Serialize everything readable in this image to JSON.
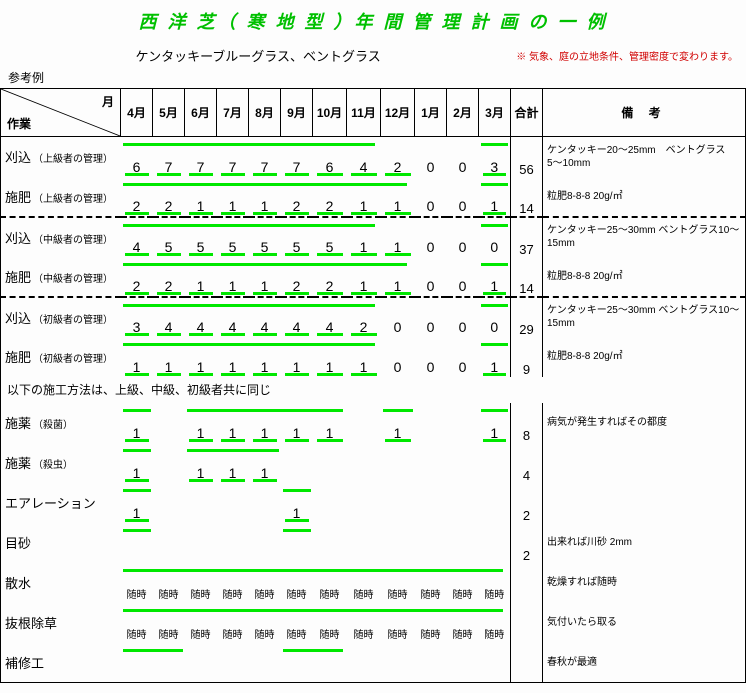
{
  "title": "西 洋 芝（ 寒 地 型 ）年 間 管 理 計 画 の 一 例",
  "subtitle": "ケンタッキーブルーグラス、ベントグラス",
  "note": "※ 気象、庭の立地条件、管理密度で変わります。",
  "ref": "参考例",
  "header": {
    "month": "月",
    "work": "作業",
    "total": "合計",
    "remark": "備 考"
  },
  "months": [
    "4月",
    "5月",
    "6月",
    "7月",
    "8月",
    "9月",
    "10月",
    "11月",
    "12月",
    "1月",
    "2月",
    "3月"
  ],
  "section_note": "以下の施工方法は、上級、中級、初級者共に同じ",
  "rows": [
    {
      "label": "刈込",
      "sub": "（上級者の管理）",
      "vals": [
        "6",
        "7",
        "7",
        "7",
        "7",
        "7",
        "6",
        "4",
        "2",
        "0",
        "0",
        "3"
      ],
      "total": "56",
      "remark": "ケンタッキー20〜25mm　ベントグラス 5〜10mm",
      "topbars": [
        [
          0,
          8
        ],
        [
          11,
          12
        ]
      ],
      "ubar": true
    },
    {
      "label": "施肥",
      "sub": "（上級者の管理）",
      "vals": [
        "2",
        "2",
        "1",
        "1",
        "1",
        "2",
        "2",
        "1",
        "1",
        "0",
        "0",
        "1"
      ],
      "total": "14",
      "remark": "粒肥8-8-8  20g/㎡",
      "topbars": [
        [
          0,
          9
        ],
        [
          11,
          12
        ]
      ],
      "ubar": true,
      "sep": true
    },
    {
      "label": "刈込",
      "sub": "（中級者の管理）",
      "vals": [
        "4",
        "5",
        "5",
        "5",
        "5",
        "5",
        "5",
        "1",
        "1",
        "0",
        "0",
        "0"
      ],
      "total": "37",
      "remark": "ケンタッキー25〜30mm ベントグラス10〜15mm",
      "topbars": [
        [
          0,
          8
        ],
        [
          11,
          12
        ]
      ],
      "ubar": true
    },
    {
      "label": "施肥",
      "sub": "（中級者の管理）",
      "vals": [
        "2",
        "2",
        "1",
        "1",
        "1",
        "2",
        "2",
        "1",
        "1",
        "0",
        "0",
        "1"
      ],
      "total": "14",
      "remark": "粒肥8-8-8  20g/㎡",
      "topbars": [
        [
          0,
          9
        ],
        [
          11,
          12
        ]
      ],
      "ubar": true,
      "sep": true
    },
    {
      "label": "刈込",
      "sub": "（初級者の管理）",
      "vals": [
        "3",
        "4",
        "4",
        "4",
        "4",
        "4",
        "4",
        "2",
        "0",
        "0",
        "0",
        "0"
      ],
      "total": "29",
      "remark": "ケンタッキー25〜30mm ベントグラス10〜15mm",
      "topbars": [
        [
          0,
          8
        ],
        [
          11,
          12
        ]
      ],
      "ubar": true
    },
    {
      "label": "施肥",
      "sub": "（初級者の管理）",
      "vals": [
        "1",
        "1",
        "1",
        "1",
        "1",
        "1",
        "1",
        "1",
        "0",
        "0",
        "0",
        "1"
      ],
      "total": "9",
      "remark": "粒肥8-8-8  20g/㎡",
      "topbars": [
        [
          0,
          8
        ],
        [
          11,
          12
        ]
      ],
      "ubar": true
    },
    {
      "section": true
    },
    {
      "label": "施薬",
      "sub": "（殺菌）",
      "vals": [
        "1",
        "",
        "1",
        "1",
        "1",
        "1",
        "1",
        "",
        "1",
        "",
        "",
        "1"
      ],
      "total": "8",
      "remark": "病気が発生すればその都度",
      "topbars": [
        [
          0,
          1
        ],
        [
          2,
          7
        ],
        [
          8,
          9
        ],
        [
          11,
          12
        ]
      ],
      "ubar": true
    },
    {
      "label": "施薬",
      "sub": "（殺虫）",
      "vals": [
        "1",
        "",
        "1",
        "1",
        "1",
        "",
        "",
        "",
        "",
        "",
        "",
        ""
      ],
      "total": "4",
      "remark": "",
      "topbars": [
        [
          0,
          1
        ],
        [
          2,
          5
        ]
      ],
      "ubar": true
    },
    {
      "label": "エアレーション",
      "sub": "",
      "vals": [
        "1",
        "",
        "",
        "",
        "",
        "1",
        "",
        "",
        "",
        "",
        "",
        ""
      ],
      "total": "2",
      "remark": "",
      "topbars": [
        [
          0,
          1
        ],
        [
          5,
          6
        ]
      ],
      "ubar": true
    },
    {
      "label": "目砂",
      "sub": "",
      "vals": [
        "",
        "",
        "",
        "",
        "",
        "",
        "",
        "",
        "",
        "",
        "",
        ""
      ],
      "total": "2",
      "remark": "出来れば川砂 2mm",
      "topbars": [
        [
          0,
          1
        ],
        [
          5,
          6
        ]
      ],
      "ubar": true
    },
    {
      "label": "散水",
      "sub": "",
      "vals": [
        "随時",
        "随時",
        "随時",
        "随時",
        "随時",
        "随時",
        "随時",
        "随時",
        "随時",
        "随時",
        "随時",
        "随時"
      ],
      "total": "",
      "remark": "乾燥すれば随時",
      "topbars": [
        [
          0,
          12
        ]
      ],
      "ubar": false,
      "small": true
    },
    {
      "label": "抜根除草",
      "sub": "",
      "vals": [
        "随時",
        "随時",
        "随時",
        "随時",
        "随時",
        "随時",
        "随時",
        "随時",
        "随時",
        "随時",
        "随時",
        "随時"
      ],
      "total": "",
      "remark": "気付いたら取る",
      "topbars": [
        [
          0,
          12
        ]
      ],
      "ubar": false,
      "small": true
    },
    {
      "label": "補修工",
      "sub": "",
      "vals": [
        "",
        "",
        "",
        "",
        "",
        "",
        "",
        "",
        "",
        "",
        "",
        ""
      ],
      "total": "",
      "remark": "春秋が最適",
      "topbars": [
        [
          0,
          2
        ],
        [
          5,
          7
        ]
      ],
      "ubar": false,
      "last": true
    }
  ],
  "colors": {
    "green": "#00e800",
    "title": "#00c000",
    "note": "#d00000"
  }
}
